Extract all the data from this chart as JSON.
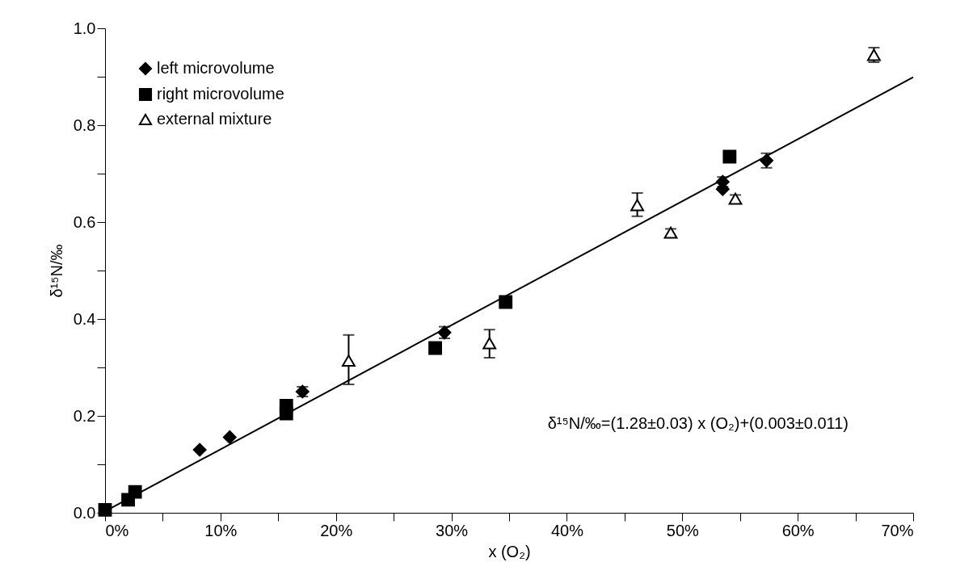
{
  "chart_data": {
    "type": "scatter",
    "xlabel": "x (O₂)",
    "ylabel": "δ¹⁵N/‰",
    "xlim": [
      0,
      70
    ],
    "ylim": [
      0,
      1.0
    ],
    "xticks": [
      {
        "value": 0,
        "label": "0%"
      },
      {
        "value": 5,
        "label": null
      },
      {
        "value": 10,
        "label": "10%"
      },
      {
        "value": 15,
        "label": null
      },
      {
        "value": 20,
        "label": "20%"
      },
      {
        "value": 25,
        "label": null
      },
      {
        "value": 30,
        "label": "30%"
      },
      {
        "value": 35,
        "label": null
      },
      {
        "value": 40,
        "label": "40%"
      },
      {
        "value": 45,
        "label": null
      },
      {
        "value": 50,
        "label": "50%"
      },
      {
        "value": 55,
        "label": null
      },
      {
        "value": 60,
        "label": "60%"
      },
      {
        "value": 65,
        "label": null
      },
      {
        "value": 70,
        "label": "70%"
      }
    ],
    "yticks": [
      {
        "value": 0,
        "label": "0.0"
      },
      {
        "value": 0.1,
        "label": null
      },
      {
        "value": 0.2,
        "label": "0.2"
      },
      {
        "value": 0.3,
        "label": null
      },
      {
        "value": 0.4,
        "label": "0.4"
      },
      {
        "value": 0.5,
        "label": null
      },
      {
        "value": 0.6,
        "label": "0.6"
      },
      {
        "value": 0.7,
        "label": null
      },
      {
        "value": 0.8,
        "label": "0.8"
      },
      {
        "value": 0.9,
        "label": null
      },
      {
        "value": 1.0,
        "label": "1.0"
      }
    ],
    "grid": false,
    "legend": "top left",
    "annotations": [
      "δ¹⁵N/‰=(1.28±0.03) x (O₂)+(0.003±0.011)"
    ],
    "series": [
      {
        "name": "left microvolume",
        "color": "#000000",
        "marker": "diamond",
        "x": [
          8.2,
          10.8,
          17.1,
          29.4,
          53.5,
          53.5,
          57.3
        ],
        "values": [
          0.13,
          0.156,
          0.25,
          0.372,
          0.683,
          0.668,
          0.727
        ],
        "errors": [
          null,
          null,
          0.01,
          0.012,
          0.01,
          null,
          0.015
        ]
      },
      {
        "name": "right microvolume",
        "color": "#000000",
        "marker": "square",
        "x": [
          0,
          2.0,
          2.6,
          15.7,
          15.7,
          28.6,
          34.7,
          54.1
        ],
        "values": [
          0.006,
          0.027,
          0.043,
          0.205,
          0.221,
          0.34,
          0.435,
          0.735
        ]
      },
      {
        "name": "external mixture",
        "color": "#ffffff",
        "marker": "triangle",
        "x": [
          21.1,
          33.3,
          46.1,
          49.0,
          54.6,
          66.6
        ],
        "values": [
          0.314,
          0.35,
          0.635,
          0.578,
          0.648,
          0.945
        ],
        "errors": [
          [
            0.265,
            0.367
          ],
          [
            0.32,
            0.378
          ],
          [
            0.612,
            0.66
          ],
          0.008,
          0.008,
          [
            0.93,
            0.96
          ]
        ]
      },
      {
        "type": "line",
        "color": "#000000",
        "x": [
          0,
          70
        ],
        "values": [
          0.003,
          0.899
        ]
      }
    ]
  }
}
